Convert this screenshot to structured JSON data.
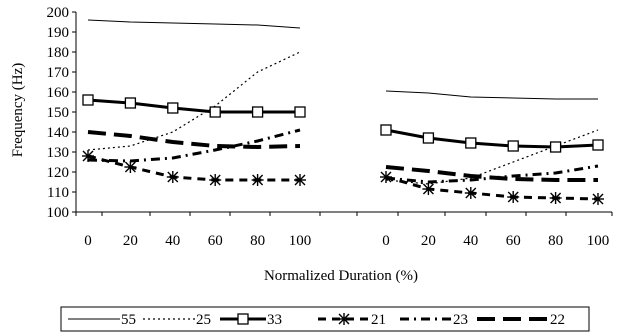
{
  "chart_data": {
    "type": "line",
    "panels": 2,
    "ylabel": "Frequency (Hz)",
    "xlabel": "Normalized Duration (%)",
    "ylim": [
      100,
      200
    ],
    "yticks": [
      100,
      110,
      120,
      130,
      140,
      150,
      160,
      170,
      180,
      190,
      200
    ],
    "x": [
      0,
      20,
      40,
      60,
      80,
      100
    ],
    "xtick_labels": [
      "0",
      "20",
      "40",
      "60",
      "80",
      "100"
    ],
    "grid": false,
    "legend_position": "bottom",
    "series": [
      {
        "name": "55",
        "style": "thin-solid",
        "marker": "none",
        "panel1": [
          196,
          195,
          194.5,
          194,
          193.5,
          192
        ],
        "panel2": [
          160.5,
          159.5,
          157.5,
          157,
          156.5,
          156.5
        ]
      },
      {
        "name": "25",
        "style": "dotted",
        "marker": "none",
        "panel1": [
          131,
          133,
          140,
          153,
          170,
          180
        ],
        "panel2": [
          116,
          114,
          117,
          125,
          133,
          141
        ]
      },
      {
        "name": "33",
        "style": "thick-solid",
        "marker": "square",
        "panel1": [
          156,
          154.5,
          152,
          150,
          150,
          150
        ],
        "panel2": [
          141,
          137,
          134.5,
          133,
          132.5,
          133.5
        ]
      },
      {
        "name": "21",
        "style": "dashed",
        "marker": "asterisk",
        "panel1": [
          128,
          122.5,
          117.5,
          116,
          116,
          116
        ],
        "panel2": [
          117.5,
          111.5,
          109.5,
          107.5,
          107,
          106.5
        ]
      },
      {
        "name": "23",
        "style": "dash-dot",
        "marker": "none",
        "panel1": [
          126,
          125.5,
          127,
          131,
          135.5,
          141
        ],
        "panel2": [
          117,
          115,
          116,
          118,
          119.5,
          123
        ]
      },
      {
        "name": "22",
        "style": "thick-long-dash",
        "marker": "none",
        "panel1": [
          140,
          138,
          135,
          133,
          132.5,
          133
        ],
        "panel2": [
          122.5,
          120.5,
          118,
          116.5,
          116,
          116
        ]
      }
    ]
  }
}
